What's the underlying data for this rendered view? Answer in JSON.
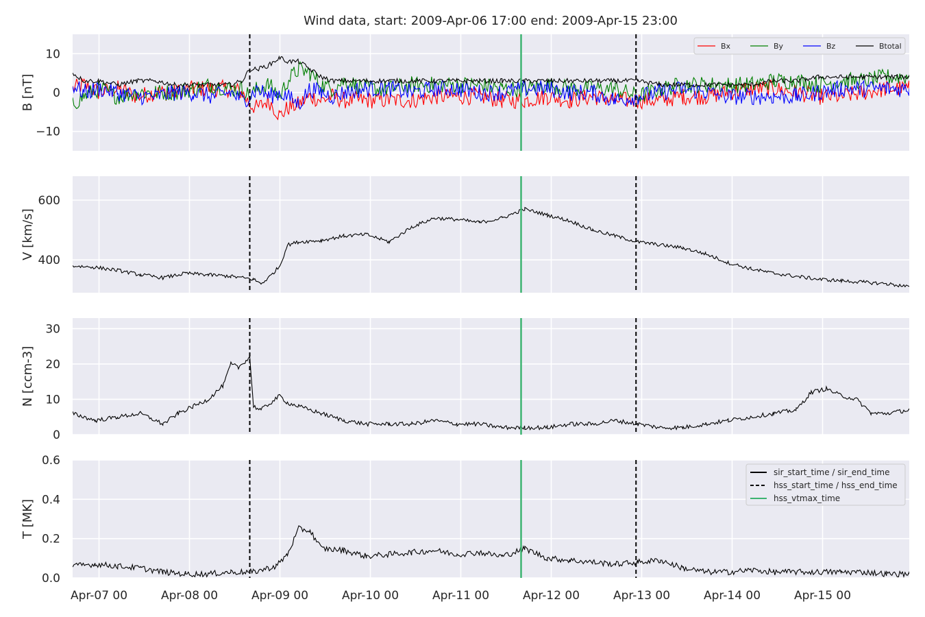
{
  "figure": {
    "title": "Wind data, start: 2009-Apr-06 17:00  end: 2009-Apr-15 23:00",
    "x_tick_labels": [
      "Apr-07 00",
      "Apr-08 00",
      "Apr-09 00",
      "Apr-10 00",
      "Apr-11 00",
      "Apr-12 00",
      "Apr-13 00",
      "Apr-14 00",
      "Apr-15 00"
    ],
    "colors": {
      "background": "#ffffff",
      "panel": "#eaeaf2",
      "grid": "#ffffff",
      "bx": "#ff0000",
      "by": "#008000",
      "bz": "#0000ff",
      "btotal": "#000000",
      "vtmax": "#3cb371",
      "boundary": "#000000"
    }
  },
  "chart_data": [
    {
      "type": "line",
      "ylabel": "B [nT]",
      "ylim": [
        -15,
        15
      ],
      "yticks": [
        -10,
        0,
        10
      ],
      "legend_placement": "top-right",
      "legend_columns": 4,
      "x_unit": "hours since 2009-04-06 17:00",
      "xlim": [
        0,
        222
      ],
      "x": [
        0,
        3,
        7,
        12,
        17,
        22,
        27,
        32,
        37,
        42,
        45,
        47,
        49,
        52,
        55,
        57,
        60,
        63,
        66,
        69,
        72,
        78,
        84,
        90,
        96,
        102,
        108,
        114,
        120,
        126,
        132,
        138,
        144,
        150,
        156,
        162,
        168,
        174,
        180,
        186,
        192,
        198,
        204,
        210,
        216,
        222
      ],
      "series": [
        {
          "name": "Bx",
          "color": "#ff0000",
          "values": [
            1,
            2,
            0,
            1,
            -1,
            0,
            0,
            1,
            1,
            1,
            0,
            -3,
            -4,
            -2,
            -6,
            -4,
            -3,
            -1,
            -2,
            -1,
            -2,
            -2,
            -2,
            -2,
            -1,
            -1,
            -1,
            -2,
            -2,
            -1,
            -2,
            -1,
            -2,
            -2,
            -2,
            -1,
            -1,
            0,
            1,
            1,
            0,
            -1,
            -1,
            0,
            1,
            1
          ]
        },
        {
          "name": "By",
          "color": "#008000",
          "values": [
            -3,
            -1,
            1,
            -1,
            0,
            0,
            0,
            1,
            2,
            1,
            1,
            -1,
            1,
            2,
            -1,
            3,
            6,
            5,
            2,
            1,
            3,
            1,
            1,
            2,
            2,
            2,
            2,
            1,
            1,
            2,
            1,
            1,
            1,
            -1,
            1,
            2,
            2,
            2,
            2,
            3,
            3,
            2,
            3,
            3,
            4,
            4
          ]
        },
        {
          "name": "Bz",
          "color": "#0000ff",
          "values": [
            2,
            0,
            1,
            0,
            -1,
            -1,
            0,
            0,
            -1,
            0,
            -2,
            -1,
            1,
            -1,
            0,
            -1,
            -3,
            1,
            0,
            -1,
            0,
            1,
            1,
            0,
            1,
            1,
            0,
            0,
            1,
            1,
            0,
            0,
            -2,
            -1,
            0,
            1,
            0,
            -1,
            -1,
            -1,
            -1,
            0,
            1,
            1,
            1,
            1
          ]
        },
        {
          "name": "Btotal",
          "color": "#000000",
          "values": [
            5,
            3,
            3,
            2,
            3,
            3,
            2,
            2,
            2,
            2,
            3,
            6,
            6,
            7,
            9,
            8,
            8,
            6,
            4,
            3,
            3,
            3,
            3,
            3,
            3,
            3,
            3,
            3,
            3,
            3,
            3,
            3,
            3,
            3,
            2,
            2,
            2,
            2,
            2,
            3,
            3,
            4,
            4,
            4,
            4,
            4
          ]
        }
      ]
    },
    {
      "type": "line",
      "ylabel": "V [km/s]",
      "ylim": [
        290,
        680
      ],
      "yticks": [
        400,
        600
      ],
      "x_unit": "hours since 2009-04-06 17:00",
      "xlim": [
        0,
        222
      ],
      "x": [
        0,
        6,
        12,
        18,
        24,
        30,
        36,
        42,
        48,
        50,
        52,
        55,
        57,
        60,
        66,
        72,
        78,
        84,
        90,
        96,
        102,
        108,
        114,
        120,
        126,
        132,
        138,
        144,
        150,
        156,
        162,
        168,
        174,
        180,
        186,
        192,
        198,
        204,
        210,
        216,
        222
      ],
      "series": [
        {
          "name": "",
          "color": "#000000",
          "values": [
            380,
            375,
            365,
            350,
            340,
            355,
            350,
            345,
            335,
            320,
            340,
            380,
            450,
            460,
            465,
            480,
            485,
            460,
            510,
            540,
            535,
            525,
            540,
            570,
            550,
            530,
            500,
            480,
            460,
            450,
            440,
            420,
            390,
            370,
            355,
            345,
            335,
            330,
            325,
            320,
            310
          ]
        }
      ]
    },
    {
      "type": "line",
      "ylabel": "N [ccm-3]",
      "ylim": [
        0,
        33
      ],
      "yticks": [
        0,
        10,
        20,
        30
      ],
      "x_unit": "hours since 2009-04-06 17:00",
      "xlim": [
        0,
        222
      ],
      "x": [
        0,
        6,
        12,
        18,
        24,
        28,
        32,
        36,
        40,
        42,
        44,
        46,
        47,
        48,
        50,
        55,
        57,
        60,
        66,
        72,
        78,
        84,
        90,
        96,
        102,
        108,
        114,
        120,
        126,
        132,
        138,
        144,
        150,
        156,
        162,
        168,
        174,
        180,
        186,
        192,
        196,
        200,
        204,
        208,
        212,
        216,
        222
      ],
      "series": [
        {
          "name": "",
          "color": "#000000",
          "values": [
            6,
            4,
            5,
            6,
            3,
            6,
            8,
            10,
            14,
            20,
            19,
            21,
            22,
            8,
            7,
            11,
            9,
            8,
            6,
            4,
            3,
            3,
            3,
            4,
            3,
            3,
            2,
            2,
            2,
            3,
            3,
            4,
            3,
            2,
            2,
            3,
            4,
            5,
            6,
            7,
            12,
            13,
            11,
            10,
            6,
            6,
            7
          ]
        }
      ]
    },
    {
      "type": "line",
      "ylabel": "T [MK]",
      "ylim": [
        0,
        0.6
      ],
      "yticks": [
        0.0,
        0.2,
        0.4,
        0.6
      ],
      "legend_placement": "top-right",
      "x_unit": "hours since 2009-04-06 17:00",
      "xlim": [
        0,
        222
      ],
      "x": [
        0,
        6,
        12,
        18,
        24,
        30,
        36,
        42,
        48,
        54,
        57,
        60,
        63,
        66,
        72,
        78,
        84,
        90,
        96,
        102,
        108,
        114,
        120,
        126,
        132,
        138,
        144,
        150,
        156,
        162,
        168,
        174,
        180,
        186,
        192,
        198,
        204,
        210,
        216,
        222
      ],
      "series": [
        {
          "name": "",
          "color": "#000000",
          "values": [
            0.06,
            0.07,
            0.06,
            0.05,
            0.03,
            0.02,
            0.02,
            0.03,
            0.03,
            0.06,
            0.12,
            0.25,
            0.24,
            0.15,
            0.14,
            0.11,
            0.12,
            0.13,
            0.14,
            0.12,
            0.13,
            0.11,
            0.15,
            0.1,
            0.09,
            0.08,
            0.07,
            0.08,
            0.09,
            0.05,
            0.03,
            0.03,
            0.04,
            0.03,
            0.03,
            0.03,
            0.03,
            0.03,
            0.02,
            0.02
          ]
        }
      ]
    }
  ],
  "event_markers": {
    "x_unit": "hours since 2009-04-06 17:00",
    "legend": [
      {
        "label": "sir_start_time / sir_end_time",
        "style": "solid",
        "color": "#000000"
      },
      {
        "label": "hss_start_time / hss_end_time",
        "style": "dashed",
        "color": "#000000"
      },
      {
        "label": "hss_vtmax_time",
        "style": "solid",
        "color": "#3cb371"
      }
    ],
    "hss_start": 47,
    "hss_end": 149.5,
    "hss_vtmax": 119
  }
}
